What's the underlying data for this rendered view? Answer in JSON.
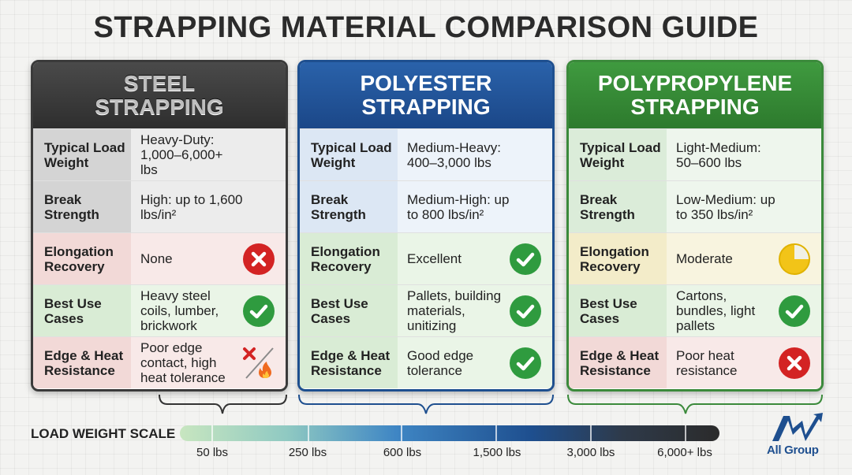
{
  "title": "STRAPPING MATERIAL COMPARISON GUIDE",
  "cards": [
    {
      "name": "steel",
      "heading_line1": "STEEL",
      "heading_line2": "STRAPPING",
      "rows": [
        {
          "label": "Typical Load Weight",
          "value": "Heavy-Duty: 1,000–6,000+ lbs",
          "icon": ""
        },
        {
          "label": "Break Strength",
          "value": "High: up to 1,600 lbs/in²",
          "icon": ""
        },
        {
          "label": "Elongation Recovery",
          "value": "None",
          "icon": "x-circle-icon"
        },
        {
          "label": "Best Use Cases",
          "value": "Heavy steel coils, lumber, brickwork",
          "icon": "check-circle-icon"
        },
        {
          "label": "Edge & Heat Resistance",
          "value": "Poor edge contact, high heat tolerance",
          "icon": "x-and-flame-icon"
        }
      ]
    },
    {
      "name": "polyester",
      "heading_line1": "POLYESTER",
      "heading_line2": "STRAPPING",
      "rows": [
        {
          "label": "Typical Load Weight",
          "value": "Medium-Heavy: 400–3,000 lbs",
          "icon": ""
        },
        {
          "label": "Break Strength",
          "value": "Medium-High: up to 800 lbs/in²",
          "icon": ""
        },
        {
          "label": "Elongation Recovery",
          "value": "Excellent",
          "icon": "check-circle-icon"
        },
        {
          "label": "Best Use Cases",
          "value": "Pallets, building materials, unitizing",
          "icon": "check-circle-icon"
        },
        {
          "label": "Edge & Heat Resistance",
          "value": "Good edge tolerance",
          "icon": "check-circle-icon"
        }
      ]
    },
    {
      "name": "polypropylene",
      "heading_line1": "POLYPROPYLENE",
      "heading_line2": "STRAPPING",
      "rows": [
        {
          "label": "Typical Load Weight",
          "value": "Light-Medium: 50–600 lbs",
          "icon": ""
        },
        {
          "label": "Break Strength",
          "value": "Low-Medium: up to 350 lbs/in²",
          "icon": ""
        },
        {
          "label": "Elongation Recovery",
          "value": "Moderate",
          "icon": "partial-circle-icon"
        },
        {
          "label": "Best Use Cases",
          "value": "Cartons, bundles, light pallets",
          "icon": "check-circle-icon"
        },
        {
          "label": "Edge & Heat Resistance",
          "value": "Poor heat resistance",
          "icon": "x-circle-icon"
        }
      ]
    }
  ],
  "scale": {
    "label": "LOAD WEIGHT SCALE",
    "ticks": [
      "50 lbs",
      "250 lbs",
      "600 lbs",
      "1,500 lbs",
      "3,000 lbs",
      "6,000+ lbs"
    ]
  },
  "colors": {
    "steel": "#3a3a3a",
    "polyester": "#1e4f8f",
    "polypropylene": "#3b8a3b",
    "bad": "#d32323",
    "good": "#2f9b3f",
    "partial": "#f2c418"
  },
  "logo": {
    "text": "All Group"
  }
}
